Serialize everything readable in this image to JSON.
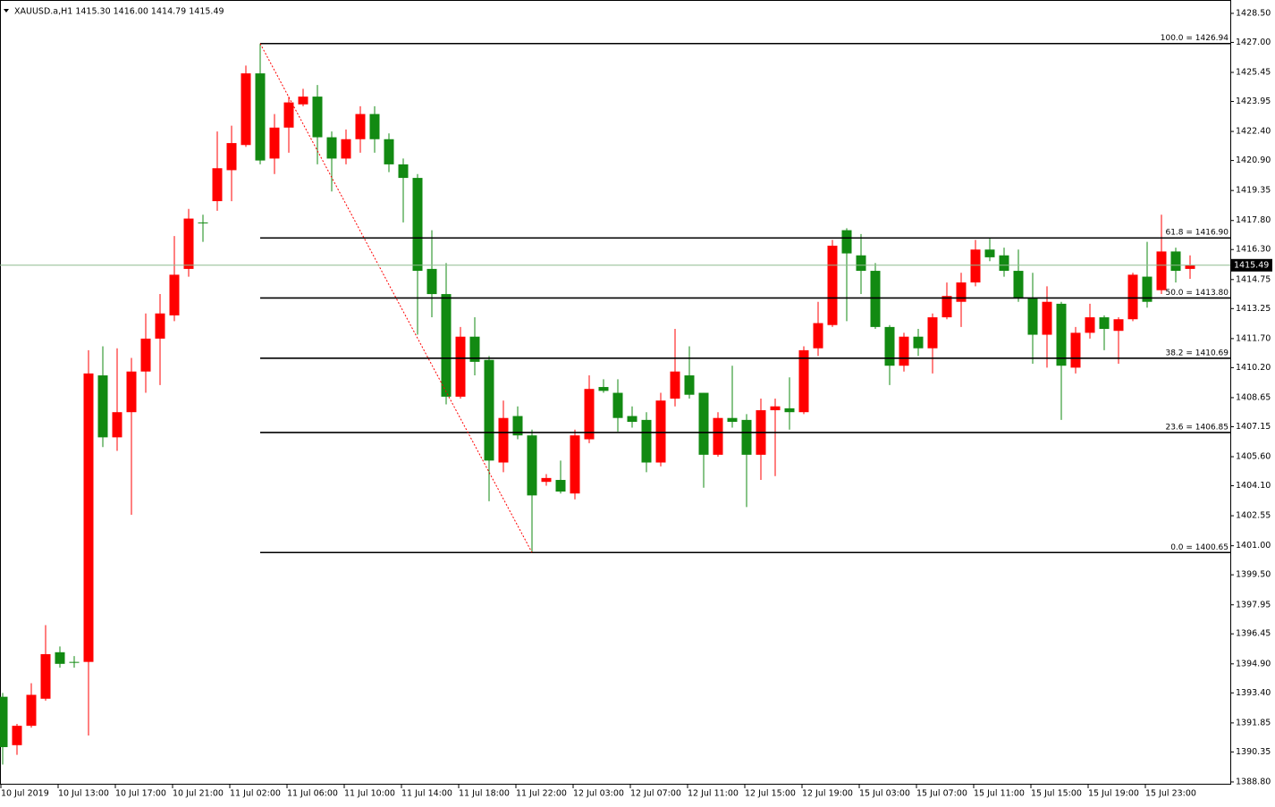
{
  "chart_data": {
    "type": "candlestick",
    "title": "XAUUSD.a,H1  1415.30 1416.00 1414.79 1415.49",
    "categories": [
      "10 Jul 2019",
      null,
      null,
      null,
      "10 Jul 13:00",
      null,
      null,
      null,
      "10 Jul 17:00",
      null,
      null,
      null,
      "10 Jul 21:00",
      null,
      null,
      null,
      "11 Jul 02:00",
      null,
      null,
      null,
      "11 Jul 06:00",
      null,
      null,
      null,
      "11 Jul 10:00",
      null,
      null,
      null,
      "11 Jul 14:00",
      null,
      null,
      null,
      "11 Jul 18:00",
      null,
      null,
      null,
      "11 Jul 22:00",
      null,
      null,
      null,
      "12 Jul 03:00",
      null,
      null,
      null,
      "12 Jul 07:00",
      null,
      null,
      null,
      "12 Jul 11:00",
      null,
      null,
      null,
      "12 Jul 15:00",
      null,
      null,
      null,
      "12 Jul 19:00",
      null,
      null,
      null,
      "15 Jul 03:00",
      null,
      null,
      null,
      "15 Jul 07:00",
      null,
      null,
      null,
      "15 Jul 11:00",
      null,
      null,
      null,
      "15 Jul 15:00",
      null,
      null,
      null,
      "15 Jul 19:00",
      null,
      null,
      null,
      "15 Jul 23:00",
      null,
      null,
      null
    ],
    "open": [
      1393.2,
      1390.7,
      1391.7,
      1393.1,
      1395.5,
      1395.0,
      1395.0,
      1409.8,
      1406.6,
      1407.9,
      1410.0,
      1411.7,
      1412.9,
      1415.3,
      1417.7,
      1418.8,
      1420.4,
      1421.7,
      1425.4,
      1421.0,
      1422.6,
      1423.8,
      1424.2,
      1422.1,
      1421.0,
      1422.0,
      1423.3,
      1422.0,
      1420.7,
      1420.0,
      1415.3,
      1414.0,
      1408.7,
      1411.8,
      1410.6,
      1405.3,
      1407.7,
      1406.7,
      1404.3,
      1404.4,
      1403.7,
      1406.5,
      1409.2,
      1408.9,
      1407.7,
      1407.5,
      1405.3,
      1408.6,
      1409.8,
      1408.9,
      1405.7,
      1407.6,
      1407.5,
      1405.7,
      1408.0,
      1408.1,
      1407.9,
      1411.2,
      1412.4,
      1417.3,
      1416.0,
      1415.2,
      1412.3,
      1410.3,
      1411.8,
      1411.2,
      1412.8,
      1413.6,
      1414.6,
      1416.3,
      1416.0,
      1415.2,
      1413.8,
      1411.9,
      1413.5,
      1410.2,
      1412.0,
      1412.8,
      1412.1,
      1412.7,
      1414.9,
      1414.2,
      1416.2,
      1415.3
    ],
    "high": [
      1393.4,
      1391.8,
      1393.9,
      1396.9,
      1395.8,
      1395.3,
      1411.1,
      1411.3,
      1411.2,
      1410.7,
      1413.0,
      1414.0,
      1417.0,
      1418.4,
      1418.1,
      1422.4,
      1422.7,
      1425.8,
      1426.94,
      1423.3,
      1424.2,
      1424.6,
      1424.8,
      1422.4,
      1422.5,
      1423.7,
      1423.7,
      1422.3,
      1421.0,
      1420.2,
      1417.3,
      1415.6,
      1412.3,
      1412.8,
      1410.8,
      1408.5,
      1408.2,
      1407.0,
      1404.7,
      1405.4,
      1407.0,
      1409.8,
      1409.6,
      1409.6,
      1408.2,
      1407.9,
      1408.9,
      1412.2,
      1411.3,
      1408.9,
      1407.9,
      1410.3,
      1407.8,
      1408.6,
      1408.6,
      1409.7,
      1411.3,
      1413.6,
      1416.8,
      1417.4,
      1417.1,
      1415.6,
      1412.4,
      1412.0,
      1412.2,
      1413.0,
      1414.6,
      1415.1,
      1416.8,
      1416.9,
      1416.4,
      1416.3,
      1415.1,
      1414.4,
      1413.6,
      1412.3,
      1413.5,
      1412.9,
      1412.8,
      1415.1,
      1416.7,
      1418.1,
      1416.4,
      1416.0
    ],
    "low": [
      1389.7,
      1390.2,
      1391.6,
      1393.0,
      1394.7,
      1394.7,
      1391.2,
      1406.1,
      1405.9,
      1402.6,
      1408.9,
      1409.3,
      1412.6,
      1414.9,
      1416.7,
      1418.3,
      1418.8,
      1421.6,
      1420.7,
      1420.2,
      1421.3,
      1423.7,
      1420.7,
      1419.3,
      1420.7,
      1421.3,
      1421.3,
      1420.3,
      1417.7,
      1411.9,
      1412.8,
      1408.3,
      1408.6,
      1409.8,
      1403.3,
      1404.8,
      1406.5,
      1400.65,
      1404.1,
      1403.7,
      1403.4,
      1406.3,
      1408.9,
      1406.9,
      1407.1,
      1404.8,
      1405.1,
      1408.2,
      1408.6,
      1404.0,
      1405.6,
      1407.1,
      1403.0,
      1404.4,
      1404.6,
      1407.0,
      1407.8,
      1410.8,
      1412.3,
      1412.6,
      1414.0,
      1412.2,
      1409.3,
      1410.0,
      1410.8,
      1409.9,
      1412.7,
      1412.3,
      1414.4,
      1415.7,
      1414.9,
      1413.6,
      1410.4,
      1410.2,
      1407.5,
      1409.9,
      1411.7,
      1411.1,
      1410.4,
      1412.6,
      1413.3,
      1414.0,
      1414.6,
      1414.79
    ],
    "close": [
      1390.6,
      1391.7,
      1393.3,
      1395.4,
      1394.9,
      1395.0,
      1409.9,
      1406.6,
      1407.9,
      1410.0,
      1411.7,
      1413.0,
      1415.0,
      1417.9,
      1417.7,
      1420.5,
      1421.8,
      1425.4,
      1420.9,
      1422.6,
      1423.9,
      1424.2,
      1422.1,
      1421.0,
      1422.0,
      1423.3,
      1422.0,
      1420.7,
      1420.0,
      1415.2,
      1414.0,
      1408.7,
      1411.8,
      1410.5,
      1405.4,
      1407.6,
      1406.7,
      1403.6,
      1404.5,
      1403.8,
      1406.7,
      1409.1,
      1409.0,
      1407.6,
      1407.4,
      1405.3,
      1408.5,
      1410.0,
      1408.8,
      1405.7,
      1407.6,
      1407.4,
      1405.7,
      1408.0,
      1408.2,
      1407.9,
      1411.1,
      1412.5,
      1416.5,
      1416.1,
      1415.2,
      1412.3,
      1410.3,
      1411.8,
      1411.2,
      1412.8,
      1413.9,
      1414.6,
      1416.3,
      1415.9,
      1415.2,
      1413.8,
      1411.9,
      1413.6,
      1410.3,
      1412.0,
      1412.8,
      1412.2,
      1412.7,
      1415.0,
      1413.6,
      1416.2,
      1415.2,
      1415.49
    ],
    "up_color": "#ff0000",
    "down_color": "#128a12",
    "ylim": [
      1388.66,
      1429.19
    ],
    "yticks": [
      {
        "value": 1428.5,
        "label": "1428.50"
      },
      {
        "value": 1427.0,
        "label": "1427.00"
      },
      {
        "value": 1425.45,
        "label": "1425.45"
      },
      {
        "value": 1423.95,
        "label": "1423.95"
      },
      {
        "value": 1422.4,
        "label": "1422.40"
      },
      {
        "value": 1420.9,
        "label": "1420.90"
      },
      {
        "value": 1419.35,
        "label": "1419.35"
      },
      {
        "value": 1417.8,
        "label": "1417.80"
      },
      {
        "value": 1416.3,
        "label": "1416.30"
      },
      {
        "value": 1414.75,
        "label": "1414.75"
      },
      {
        "value": 1413.25,
        "label": "1413.25"
      },
      {
        "value": 1411.7,
        "label": "1411.70"
      },
      {
        "value": 1410.2,
        "label": "1410.20"
      },
      {
        "value": 1408.65,
        "label": "1408.65"
      },
      {
        "value": 1407.15,
        "label": "1407.15"
      },
      {
        "value": 1405.6,
        "label": "1405.60"
      },
      {
        "value": 1404.1,
        "label": "1404.10"
      },
      {
        "value": 1402.55,
        "label": "1402.55"
      },
      {
        "value": 1401.0,
        "label": "1401.00"
      },
      {
        "value": 1399.5,
        "label": "1399.50"
      },
      {
        "value": 1397.95,
        "label": "1397.95"
      },
      {
        "value": 1396.45,
        "label": "1396.45"
      },
      {
        "value": 1394.9,
        "label": "1394.90"
      },
      {
        "value": 1393.4,
        "label": "1393.40"
      },
      {
        "value": 1391.85,
        "label": "1391.85"
      },
      {
        "value": 1390.35,
        "label": "1390.35"
      },
      {
        "value": 1388.8,
        "label": "1388.80"
      }
    ],
    "fib_levels": [
      {
        "value": 1426.94,
        "label": "100.0 = 1426.94"
      },
      {
        "value": 1416.9,
        "label": "61.8 = 1416.90"
      },
      {
        "value": 1413.8,
        "label": "50.0 = 1413.80"
      },
      {
        "value": 1410.69,
        "label": "38.2 = 1410.69"
      },
      {
        "value": 1406.85,
        "label": "23.6 = 1406.85"
      },
      {
        "value": 1400.65,
        "label": "0.0 = 1400.65"
      }
    ],
    "fib_color": "#000000",
    "fib_trend_color": "#ff0000",
    "current_price": {
      "value": 1415.49,
      "label": "1415.49"
    },
    "price_line_color": "#8fbc8f"
  }
}
